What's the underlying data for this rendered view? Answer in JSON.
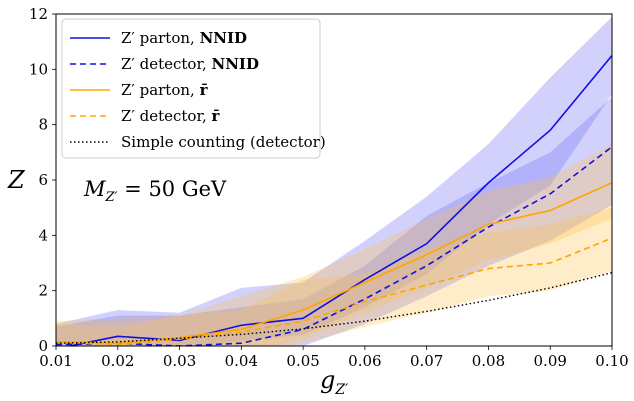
{
  "chart_data": {
    "type": "line",
    "title": "",
    "xlabel": "g_{Z'}",
    "ylabel": "Z",
    "xlabel_base": "g",
    "xlabel_sub": "Z′",
    "xlim": [
      0.01,
      0.1
    ],
    "ylim": [
      0,
      12
    ],
    "xticks": [
      "0.01",
      "0.02",
      "0.03",
      "0.04",
      "0.05",
      "0.06",
      "0.07",
      "0.08",
      "0.09",
      "0.10"
    ],
    "yticks": [
      "0",
      "2",
      "4",
      "6",
      "8",
      "10",
      "12"
    ],
    "annotation": "M_{Z'} = 50 GeV",
    "annotation_base": "M",
    "annotation_sub": "Z′",
    "annotation_rest": " = 50 GeV",
    "legend_position": "top-left",
    "x": [
      0.01,
      0.02,
      0.03,
      0.04,
      0.05,
      0.06,
      0.07,
      0.08,
      0.09,
      0.1
    ],
    "series": [
      {
        "name": "Z′ parton, NNID",
        "label_main": "Z′ parton, ",
        "label_bold": "NNID",
        "color": "#1010e0",
        "style": "solid",
        "values": [
          -0.1,
          0.35,
          0.2,
          0.75,
          1.0,
          2.4,
          3.7,
          5.9,
          7.8,
          10.5
        ],
        "band_low": [
          -0.3,
          0.0,
          -0.2,
          0.2,
          0.4,
          1.4,
          2.6,
          4.4,
          5.8,
          9.1
        ],
        "band_high": [
          0.8,
          1.3,
          1.2,
          2.1,
          2.3,
          3.8,
          5.4,
          7.3,
          9.7,
          11.9
        ]
      },
      {
        "name": "Z′ detector, NNID",
        "label_main": "Z′ detector, ",
        "label_bold": "NNID",
        "color": "#1010e0",
        "style": "dashed",
        "values": [
          0.05,
          0.1,
          0.0,
          0.1,
          0.6,
          1.7,
          2.9,
          4.3,
          5.5,
          7.2
        ],
        "band_low": [
          -0.3,
          -0.3,
          -0.4,
          -0.3,
          0.0,
          0.8,
          1.8,
          2.9,
          3.8,
          5.1
        ],
        "band_high": [
          0.7,
          1.1,
          1.1,
          1.4,
          1.7,
          2.9,
          4.7,
          5.9,
          7.0,
          9.0
        ]
      },
      {
        "name": "Z′ parton, r̄",
        "label_main": "Z′ parton, ",
        "label_bold": "r̄",
        "color": "#ffa500",
        "style": "solid",
        "values": [
          0.15,
          0.1,
          0.3,
          0.6,
          1.3,
          2.3,
          3.3,
          4.4,
          4.9,
          5.9
        ],
        "band_low": [
          -0.5,
          -0.6,
          -0.5,
          -0.4,
          0.3,
          1.2,
          2.1,
          3.1,
          3.7,
          4.6
        ],
        "band_high": [
          0.9,
          1.0,
          1.1,
          1.8,
          2.5,
          3.5,
          4.6,
          5.6,
          6.1,
          7.3
        ]
      },
      {
        "name": "Z′ detector, r̄",
        "label_main": "Z′ detector, ",
        "label_bold": "r̄",
        "color": "#ffa500",
        "style": "dashed",
        "values": [
          0.15,
          0.05,
          0.25,
          0.5,
          0.9,
          1.6,
          2.2,
          2.8,
          3.0,
          3.9
        ],
        "band_low": [
          -0.5,
          -0.6,
          -0.5,
          -0.4,
          0.1,
          0.7,
          1.2,
          1.8,
          2.0,
          2.7
        ],
        "band_high": [
          0.8,
          0.7,
          1.1,
          1.3,
          2.4,
          2.6,
          3.5,
          4.1,
          4.4,
          5.0
        ]
      },
      {
        "name": "Simple counting (detector)",
        "label_main": "Simple counting (detector)",
        "label_bold": "",
        "color": "#000000",
        "style": "dotted",
        "values": [
          0.1,
          0.15,
          0.28,
          0.42,
          0.62,
          0.9,
          1.25,
          1.65,
          2.1,
          2.65
        ]
      }
    ]
  }
}
